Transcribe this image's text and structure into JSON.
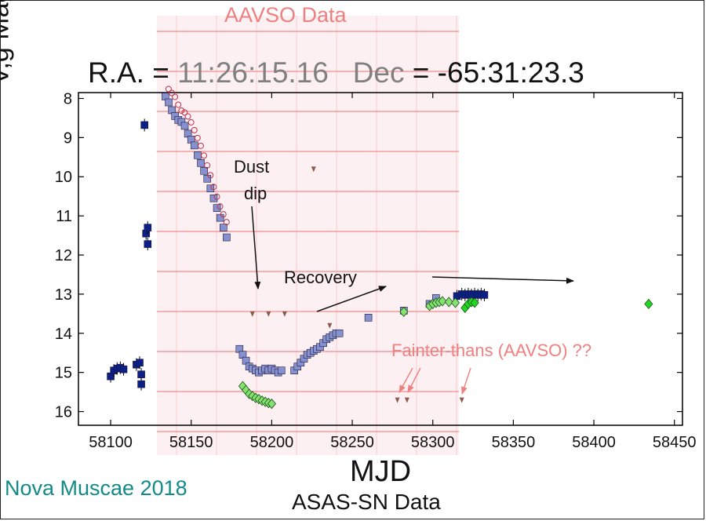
{
  "header": {
    "aavso_title": "AAVSO Data",
    "ra_label": "R.A. =",
    "ra_value": "11:26:15.16",
    "dec_label": "Dec",
    "dec_value": "= -65:31:23.3"
  },
  "footer": {
    "object_name": "Nova Muscae 2018",
    "source_label": "ASAS-SN Data"
  },
  "annotations": {
    "dust_line1": "Dust",
    "dust_line2": "dip",
    "recovery": "Recovery",
    "fainter": "Fainter-thans (AAVSO) ??"
  },
  "colors": {
    "asassn_v": "#0b1f86",
    "asassn_g_light": "#8891cf",
    "asassn_g_green": "#84e36f",
    "asassn_g_green_bright": "#20d820",
    "aavso_band": "#fdeef2",
    "aavso_grid": "#f08080",
    "aavso_points": "#c0304a",
    "aavso_pink": "#f070b0",
    "upper_limit": "#8b5a4a",
    "arrow_pink": "#f08080"
  },
  "chart_data": {
    "type": "scatter",
    "title": "",
    "xlabel": "MJD",
    "ylabel": "V,g Magnitude",
    "xlim": [
      58080,
      58455
    ],
    "ylim": [
      16.35,
      7.85
    ],
    "y_inverted": true,
    "grid": false,
    "xticks": [
      58100,
      58150,
      58200,
      58250,
      58300,
      58350,
      58400,
      58450
    ],
    "yticks": [
      8,
      9,
      10,
      11,
      12,
      13,
      14,
      15,
      16
    ],
    "series": [
      {
        "marker": "square-errorbar",
        "color": "#0b1f86",
        "points": [
          [
            58100,
            15.1
          ],
          [
            58102,
            14.95
          ],
          [
            58104,
            14.9
          ],
          [
            58106,
            14.88
          ],
          [
            58108,
            14.92
          ],
          [
            58116,
            14.8
          ],
          [
            58118,
            14.75
          ],
          [
            58119,
            15.05
          ],
          [
            58119,
            15.3
          ],
          [
            58121,
            8.68
          ],
          [
            58122,
            11.45
          ],
          [
            58123,
            11.3
          ],
          [
            58123,
            11.72
          ],
          [
            58315,
            13.05
          ],
          [
            58318,
            13.0
          ],
          [
            58320,
            13.02
          ],
          [
            58322,
            13.0
          ],
          [
            58324,
            13.02
          ],
          [
            58326,
            13.0
          ],
          [
            58328,
            13.02
          ],
          [
            58330,
            13.0
          ],
          [
            58332,
            13.02
          ]
        ]
      },
      {
        "marker": "square",
        "color": "#8891cf",
        "points": [
          [
            58134,
            7.95
          ],
          [
            58136,
            8.1
          ],
          [
            58138,
            8.3
          ],
          [
            58140,
            8.45
          ],
          [
            58142,
            8.55
          ],
          [
            58144,
            8.6
          ],
          [
            58146,
            8.7
          ],
          [
            58148,
            8.9
          ],
          [
            58150,
            9.05
          ],
          [
            58152,
            9.2
          ],
          [
            58154,
            9.45
          ],
          [
            58156,
            9.65
          ],
          [
            58158,
            9.85
          ],
          [
            58160,
            10.05
          ],
          [
            58162,
            10.3
          ],
          [
            58164,
            10.55
          ],
          [
            58166,
            10.8
          ],
          [
            58168,
            11.05
          ],
          [
            58170,
            11.3
          ],
          [
            58172,
            11.55
          ],
          [
            58180,
            14.4
          ],
          [
            58182,
            14.55
          ],
          [
            58184,
            14.7
          ],
          [
            58186,
            14.85
          ],
          [
            58188,
            14.9
          ],
          [
            58190,
            14.95
          ],
          [
            58192,
            15.0
          ],
          [
            58194,
            14.95
          ],
          [
            58196,
            14.9
          ],
          [
            58198,
            14.95
          ],
          [
            58200,
            14.9
          ],
          [
            58202,
            14.95
          ],
          [
            58204,
            15.0
          ],
          [
            58206,
            14.95
          ],
          [
            58214,
            14.95
          ],
          [
            58216,
            14.85
          ],
          [
            58218,
            14.75
          ],
          [
            58220,
            14.65
          ],
          [
            58222,
            14.55
          ],
          [
            58224,
            14.5
          ],
          [
            58226,
            14.45
          ],
          [
            58228,
            14.4
          ],
          [
            58230,
            14.35
          ],
          [
            58232,
            14.25
          ],
          [
            58234,
            14.15
          ],
          [
            58236,
            14.1
          ],
          [
            58238,
            14.05
          ],
          [
            58240,
            14.0
          ],
          [
            58242,
            14.0
          ],
          [
            58260,
            13.6
          ],
          [
            58282,
            13.42
          ],
          [
            58298,
            13.25
          ],
          [
            58302,
            13.1
          ]
        ]
      },
      {
        "marker": "diamond",
        "color": "#84e36f",
        "points": [
          [
            58182,
            15.35
          ],
          [
            58184,
            15.45
          ],
          [
            58186,
            15.55
          ],
          [
            58188,
            15.6
          ],
          [
            58190,
            15.65
          ],
          [
            58192,
            15.68
          ],
          [
            58194,
            15.72
          ],
          [
            58196,
            15.75
          ],
          [
            58198,
            15.78
          ],
          [
            58200,
            15.8
          ],
          [
            58282,
            13.45
          ],
          [
            58298,
            13.3
          ],
          [
            58300,
            13.25
          ],
          [
            58302,
            13.22
          ],
          [
            58304,
            13.2
          ],
          [
            58306,
            13.18
          ],
          [
            58310,
            13.2
          ],
          [
            58314,
            13.22
          ]
        ]
      },
      {
        "marker": "diamond",
        "color": "#20d820",
        "points": [
          [
            58320,
            13.35
          ],
          [
            58322,
            13.25
          ],
          [
            58324,
            13.2
          ],
          [
            58326,
            13.22
          ],
          [
            58434,
            13.25
          ]
        ]
      },
      {
        "marker": "triangle-down",
        "color": "#8b5a4a",
        "points": [
          [
            58188,
            13.5
          ],
          [
            58198,
            13.5
          ],
          [
            58208,
            13.5
          ],
          [
            58226,
            9.8
          ],
          [
            58236,
            13.8
          ],
          [
            58278,
            15.7
          ],
          [
            58284,
            15.7
          ],
          [
            58318,
            15.7
          ]
        ]
      }
    ],
    "aavso_overlay": {
      "title": "AAVSO Data",
      "x": [
        58134,
        58136,
        58138,
        58140,
        58142,
        58144,
        58146,
        58148,
        58150,
        58152,
        58154,
        58156,
        58158,
        58160,
        58162,
        58164,
        58166,
        58168,
        58170
      ],
      "y": [
        7.8,
        7.9,
        8.0,
        8.2,
        8.35,
        8.4,
        8.5,
        8.65,
        8.85,
        9.05,
        9.25,
        9.5,
        9.75,
        10.0,
        10.3,
        10.55,
        10.8,
        11.0,
        11.2
      ]
    }
  }
}
